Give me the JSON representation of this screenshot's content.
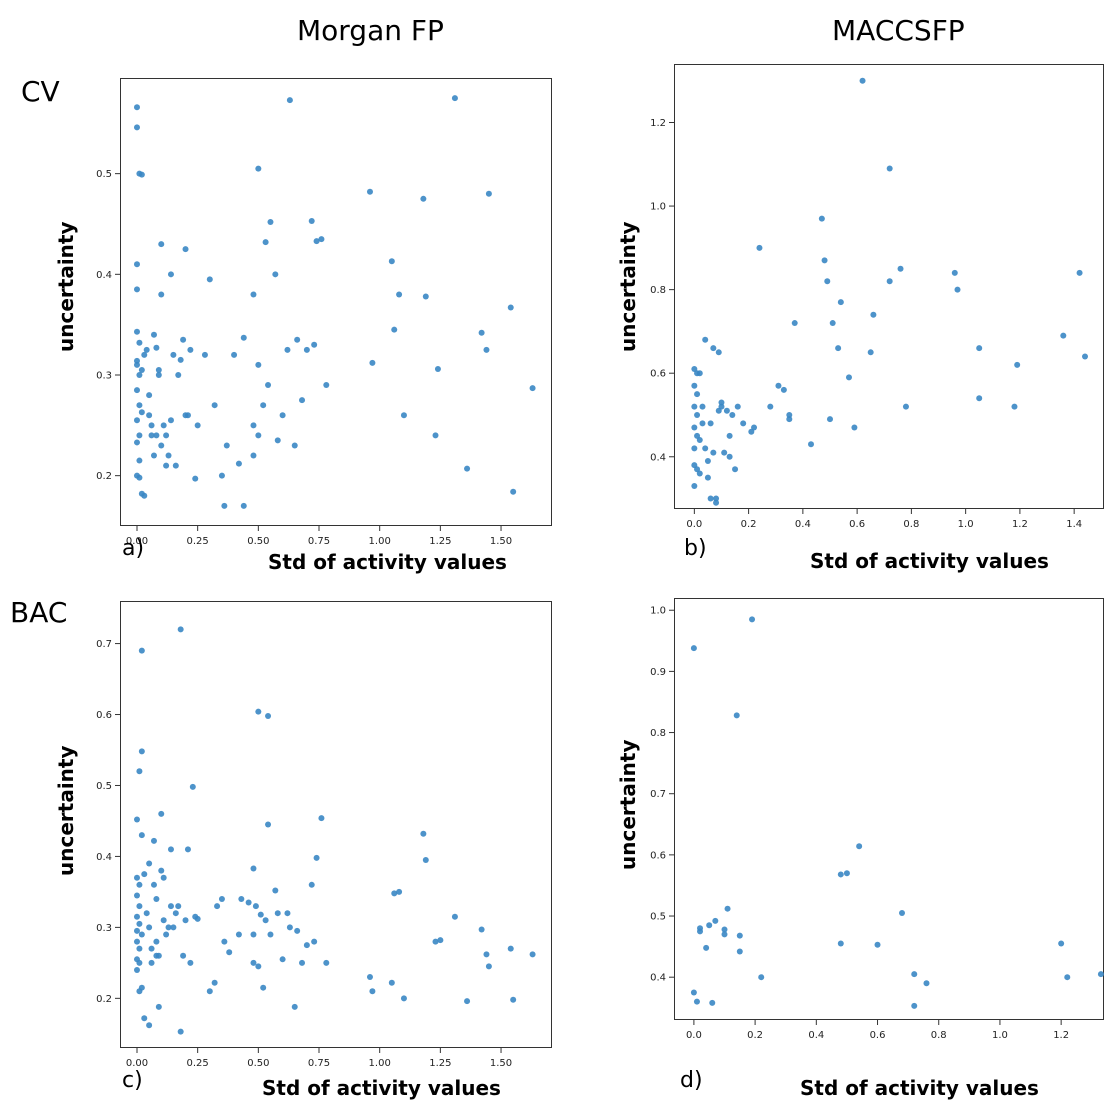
{
  "column_titles": [
    "Morgan FP",
    "MACCSFP"
  ],
  "row_labels": [
    "CV",
    "BAC"
  ],
  "point_color": "#3a87c4",
  "chart_data": [
    {
      "id": "a",
      "panel_letter": "a)",
      "type": "scatter",
      "xlabel": "Std of activity values",
      "ylabel": "uncertainty",
      "xlim": [
        -0.07,
        1.71
      ],
      "ylim": [
        0.15,
        0.595
      ],
      "xticks": [
        0.0,
        0.25,
        0.5,
        0.75,
        1.0,
        1.25,
        1.5
      ],
      "xtick_labels": [
        "0.00",
        "0.25",
        "0.50",
        "0.75",
        "1.00",
        "1.25",
        "1.50"
      ],
      "yticks": [
        0.2,
        0.3,
        0.4,
        0.5
      ],
      "ytick_labels": [
        "0.2",
        "0.3",
        "0.4",
        "0.5"
      ],
      "points": [
        [
          0.0,
          0.566
        ],
        [
          0.0,
          0.546
        ],
        [
          0.01,
          0.5
        ],
        [
          0.02,
          0.499
        ],
        [
          0.0,
          0.41
        ],
        [
          0.0,
          0.385
        ],
        [
          0.0,
          0.343
        ],
        [
          0.01,
          0.332
        ],
        [
          0.0,
          0.314
        ],
        [
          0.0,
          0.31
        ],
        [
          0.01,
          0.3
        ],
        [
          0.0,
          0.285
        ],
        [
          0.01,
          0.27
        ],
        [
          0.02,
          0.263
        ],
        [
          0.0,
          0.255
        ],
        [
          0.01,
          0.24
        ],
        [
          0.0,
          0.233
        ],
        [
          0.01,
          0.215
        ],
        [
          0.0,
          0.2
        ],
        [
          0.02,
          0.182
        ],
        [
          0.03,
          0.18
        ],
        [
          0.01,
          0.198
        ],
        [
          0.02,
          0.305
        ],
        [
          0.03,
          0.32
        ],
        [
          0.04,
          0.325
        ],
        [
          0.05,
          0.26
        ],
        [
          0.05,
          0.28
        ],
        [
          0.06,
          0.25
        ],
        [
          0.06,
          0.24
        ],
        [
          0.07,
          0.22
        ],
        [
          0.07,
          0.34
        ],
        [
          0.08,
          0.24
        ],
        [
          0.08,
          0.327
        ],
        [
          0.09,
          0.305
        ],
        [
          0.09,
          0.3
        ],
        [
          0.1,
          0.38
        ],
        [
          0.1,
          0.43
        ],
        [
          0.1,
          0.23
        ],
        [
          0.11,
          0.25
        ],
        [
          0.12,
          0.24
        ],
        [
          0.12,
          0.21
        ],
        [
          0.13,
          0.22
        ],
        [
          0.14,
          0.255
        ],
        [
          0.14,
          0.4
        ],
        [
          0.15,
          0.32
        ],
        [
          0.16,
          0.21
        ],
        [
          0.17,
          0.3
        ],
        [
          0.18,
          0.315
        ],
        [
          0.19,
          0.335
        ],
        [
          0.2,
          0.425
        ],
        [
          0.2,
          0.26
        ],
        [
          0.21,
          0.26
        ],
        [
          0.22,
          0.325
        ],
        [
          0.24,
          0.197
        ],
        [
          0.25,
          0.25
        ],
        [
          0.28,
          0.32
        ],
        [
          0.3,
          0.395
        ],
        [
          0.32,
          0.27
        ],
        [
          0.35,
          0.2
        ],
        [
          0.36,
          0.17
        ],
        [
          0.37,
          0.23
        ],
        [
          0.4,
          0.32
        ],
        [
          0.42,
          0.212
        ],
        [
          0.44,
          0.337
        ],
        [
          0.44,
          0.17
        ],
        [
          0.48,
          0.38
        ],
        [
          0.48,
          0.25
        ],
        [
          0.48,
          0.22
        ],
        [
          0.5,
          0.505
        ],
        [
          0.5,
          0.24
        ],
        [
          0.5,
          0.31
        ],
        [
          0.52,
          0.27
        ],
        [
          0.53,
          0.432
        ],
        [
          0.54,
          0.29
        ],
        [
          0.55,
          0.452
        ],
        [
          0.57,
          0.4
        ],
        [
          0.58,
          0.235
        ],
        [
          0.6,
          0.26
        ],
        [
          0.62,
          0.325
        ],
        [
          0.63,
          0.573
        ],
        [
          0.65,
          0.23
        ],
        [
          0.66,
          0.335
        ],
        [
          0.68,
          0.275
        ],
        [
          0.7,
          0.325
        ],
        [
          0.72,
          0.453
        ],
        [
          0.73,
          0.33
        ],
        [
          0.74,
          0.433
        ],
        [
          0.76,
          0.435
        ],
        [
          0.78,
          0.29
        ],
        [
          0.96,
          0.482
        ],
        [
          0.97,
          0.312
        ],
        [
          1.05,
          0.413
        ],
        [
          1.06,
          0.345
        ],
        [
          1.08,
          0.38
        ],
        [
          1.1,
          0.26
        ],
        [
          1.18,
          0.475
        ],
        [
          1.19,
          0.378
        ],
        [
          1.23,
          0.24
        ],
        [
          1.24,
          0.306
        ],
        [
          1.31,
          0.575
        ],
        [
          1.36,
          0.207
        ],
        [
          1.42,
          0.342
        ],
        [
          1.44,
          0.325
        ],
        [
          1.45,
          0.48
        ],
        [
          1.54,
          0.367
        ],
        [
          1.55,
          0.184
        ],
        [
          1.63,
          0.287
        ]
      ]
    },
    {
      "id": "b",
      "panel_letter": "b)",
      "type": "scatter",
      "xlabel": "Std of activity values",
      "ylabel": "uncertainty",
      "xlim": [
        -0.075,
        1.51
      ],
      "ylim": [
        0.275,
        1.34
      ],
      "xticks": [
        0.0,
        0.2,
        0.4,
        0.6,
        0.8,
        1.0,
        1.2,
        1.4
      ],
      "xtick_labels": [
        "0.0",
        "0.2",
        "0.4",
        "0.6",
        "0.8",
        "1.0",
        "1.2",
        "1.4"
      ],
      "yticks": [
        0.4,
        0.6,
        0.8,
        1.0,
        1.2
      ],
      "ytick_labels": [
        "0.4",
        "0.6",
        "0.8",
        "1.0",
        "1.2"
      ],
      "points": [
        [
          0.0,
          0.61
        ],
        [
          0.01,
          0.6
        ],
        [
          0.0,
          0.57
        ],
        [
          0.01,
          0.55
        ],
        [
          0.0,
          0.52
        ],
        [
          0.01,
          0.5
        ],
        [
          0.0,
          0.47
        ],
        [
          0.01,
          0.45
        ],
        [
          0.0,
          0.42
        ],
        [
          0.0,
          0.38
        ],
        [
          0.01,
          0.37
        ],
        [
          0.0,
          0.33
        ],
        [
          0.02,
          0.36
        ],
        [
          0.02,
          0.44
        ],
        [
          0.02,
          0.6
        ],
        [
          0.03,
          0.48
        ],
        [
          0.03,
          0.52
        ],
        [
          0.04,
          0.42
        ],
        [
          0.04,
          0.68
        ],
        [
          0.05,
          0.39
        ],
        [
          0.05,
          0.35
        ],
        [
          0.06,
          0.3
        ],
        [
          0.06,
          0.48
        ],
        [
          0.07,
          0.41
        ],
        [
          0.07,
          0.66
        ],
        [
          0.08,
          0.3
        ],
        [
          0.08,
          0.29
        ],
        [
          0.09,
          0.65
        ],
        [
          0.09,
          0.51
        ],
        [
          0.1,
          0.52
        ],
        [
          0.1,
          0.53
        ],
        [
          0.11,
          0.41
        ],
        [
          0.12,
          0.51
        ],
        [
          0.13,
          0.45
        ],
        [
          0.13,
          0.4
        ],
        [
          0.14,
          0.5
        ],
        [
          0.15,
          0.37
        ],
        [
          0.16,
          0.52
        ],
        [
          0.18,
          0.48
        ],
        [
          0.21,
          0.46
        ],
        [
          0.22,
          0.47
        ],
        [
          0.24,
          0.9
        ],
        [
          0.28,
          0.52
        ],
        [
          0.31,
          0.57
        ],
        [
          0.33,
          0.56
        ],
        [
          0.35,
          0.49
        ],
        [
          0.35,
          0.5
        ],
        [
          0.37,
          0.72
        ],
        [
          0.43,
          0.43
        ],
        [
          0.47,
          0.97
        ],
        [
          0.48,
          0.87
        ],
        [
          0.49,
          0.82
        ],
        [
          0.5,
          0.49
        ],
        [
          0.51,
          0.72
        ],
        [
          0.53,
          0.66
        ],
        [
          0.54,
          0.77
        ],
        [
          0.57,
          0.59
        ],
        [
          0.59,
          0.47
        ],
        [
          0.62,
          1.3
        ],
        [
          0.65,
          0.65
        ],
        [
          0.66,
          0.74
        ],
        [
          0.72,
          0.82
        ],
        [
          0.72,
          1.09
        ],
        [
          0.76,
          0.85
        ],
        [
          0.78,
          0.52
        ],
        [
          0.96,
          0.84
        ],
        [
          0.97,
          0.8
        ],
        [
          1.05,
          0.66
        ],
        [
          1.05,
          0.54
        ],
        [
          1.18,
          0.52
        ],
        [
          1.19,
          0.62
        ],
        [
          1.36,
          0.69
        ],
        [
          1.42,
          0.84
        ],
        [
          1.44,
          0.64
        ]
      ]
    },
    {
      "id": "c",
      "panel_letter": "c)",
      "type": "scatter",
      "xlabel": "Std of activity values",
      "ylabel": "uncertainty",
      "xlim": [
        -0.07,
        1.71
      ],
      "ylim": [
        0.13,
        0.76
      ],
      "xticks": [
        0.0,
        0.25,
        0.5,
        0.75,
        1.0,
        1.25,
        1.5
      ],
      "xtick_labels": [
        "0.00",
        "0.25",
        "0.50",
        "0.75",
        "1.00",
        "1.25",
        "1.50"
      ],
      "yticks": [
        0.2,
        0.3,
        0.4,
        0.5,
        0.6,
        0.7
      ],
      "ytick_labels": [
        "0.2",
        "0.3",
        "0.4",
        "0.5",
        "0.6",
        "0.7"
      ],
      "points": [
        [
          0.02,
          0.69
        ],
        [
          0.02,
          0.548
        ],
        [
          0.01,
          0.52
        ],
        [
          0.0,
          0.452
        ],
        [
          0.02,
          0.43
        ],
        [
          0.0,
          0.37
        ],
        [
          0.01,
          0.36
        ],
        [
          0.0,
          0.345
        ],
        [
          0.01,
          0.33
        ],
        [
          0.0,
          0.315
        ],
        [
          0.01,
          0.305
        ],
        [
          0.0,
          0.295
        ],
        [
          0.02,
          0.29
        ],
        [
          0.0,
          0.28
        ],
        [
          0.01,
          0.27
        ],
        [
          0.0,
          0.255
        ],
        [
          0.01,
          0.25
        ],
        [
          0.0,
          0.24
        ],
        [
          0.02,
          0.215
        ],
        [
          0.01,
          0.21
        ],
        [
          0.03,
          0.172
        ],
        [
          0.05,
          0.162
        ],
        [
          0.03,
          0.375
        ],
        [
          0.04,
          0.32
        ],
        [
          0.05,
          0.39
        ],
        [
          0.05,
          0.3
        ],
        [
          0.06,
          0.27
        ],
        [
          0.06,
          0.25
        ],
        [
          0.07,
          0.422
        ],
        [
          0.07,
          0.36
        ],
        [
          0.08,
          0.34
        ],
        [
          0.08,
          0.28
        ],
        [
          0.08,
          0.26
        ],
        [
          0.09,
          0.26
        ],
        [
          0.09,
          0.188
        ],
        [
          0.1,
          0.46
        ],
        [
          0.1,
          0.38
        ],
        [
          0.11,
          0.37
        ],
        [
          0.11,
          0.31
        ],
        [
          0.12,
          0.29
        ],
        [
          0.13,
          0.3
        ],
        [
          0.14,
          0.41
        ],
        [
          0.14,
          0.33
        ],
        [
          0.15,
          0.3
        ],
        [
          0.16,
          0.32
        ],
        [
          0.17,
          0.33
        ],
        [
          0.18,
          0.72
        ],
        [
          0.18,
          0.153
        ],
        [
          0.19,
          0.26
        ],
        [
          0.2,
          0.31
        ],
        [
          0.21,
          0.41
        ],
        [
          0.22,
          0.25
        ],
        [
          0.23,
          0.498
        ],
        [
          0.24,
          0.315
        ],
        [
          0.25,
          0.312
        ],
        [
          0.3,
          0.21
        ],
        [
          0.32,
          0.222
        ],
        [
          0.33,
          0.33
        ],
        [
          0.35,
          0.34
        ],
        [
          0.36,
          0.28
        ],
        [
          0.38,
          0.265
        ],
        [
          0.42,
          0.29
        ],
        [
          0.43,
          0.34
        ],
        [
          0.46,
          0.335
        ],
        [
          0.48,
          0.383
        ],
        [
          0.48,
          0.29
        ],
        [
          0.48,
          0.25
        ],
        [
          0.49,
          0.33
        ],
        [
          0.5,
          0.604
        ],
        [
          0.5,
          0.245
        ],
        [
          0.51,
          0.318
        ],
        [
          0.52,
          0.215
        ],
        [
          0.53,
          0.31
        ],
        [
          0.54,
          0.598
        ],
        [
          0.54,
          0.445
        ],
        [
          0.55,
          0.29
        ],
        [
          0.57,
          0.352
        ],
        [
          0.58,
          0.32
        ],
        [
          0.6,
          0.255
        ],
        [
          0.62,
          0.32
        ],
        [
          0.63,
          0.3
        ],
        [
          0.65,
          0.188
        ],
        [
          0.66,
          0.295
        ],
        [
          0.68,
          0.25
        ],
        [
          0.7,
          0.275
        ],
        [
          0.72,
          0.36
        ],
        [
          0.73,
          0.28
        ],
        [
          0.74,
          0.398
        ],
        [
          0.76,
          0.454
        ],
        [
          0.78,
          0.25
        ],
        [
          0.96,
          0.23
        ],
        [
          0.97,
          0.21
        ],
        [
          1.05,
          0.222
        ],
        [
          1.06,
          0.348
        ],
        [
          1.08,
          0.35
        ],
        [
          1.1,
          0.2
        ],
        [
          1.18,
          0.432
        ],
        [
          1.19,
          0.395
        ],
        [
          1.23,
          0.28
        ],
        [
          1.25,
          0.282
        ],
        [
          1.31,
          0.315
        ],
        [
          1.36,
          0.196
        ],
        [
          1.42,
          0.297
        ],
        [
          1.44,
          0.262
        ],
        [
          1.45,
          0.245
        ],
        [
          1.54,
          0.27
        ],
        [
          1.55,
          0.198
        ],
        [
          1.63,
          0.262
        ]
      ]
    },
    {
      "id": "d",
      "panel_letter": "d)",
      "type": "scatter",
      "xlabel": "Std of activity values",
      "ylabel": "uncertainty",
      "xlim": [
        -0.065,
        1.34
      ],
      "ylim": [
        0.33,
        1.02
      ],
      "xticks": [
        0.0,
        0.2,
        0.4,
        0.6,
        0.8,
        1.0,
        1.2
      ],
      "xtick_labels": [
        "0.0",
        "0.2",
        "0.4",
        "0.6",
        "0.8",
        "1.0",
        "1.2"
      ],
      "yticks": [
        0.4,
        0.5,
        0.6,
        0.7,
        0.8,
        0.9,
        1.0
      ],
      "ytick_labels": [
        "0.4",
        "0.5",
        "0.6",
        "0.7",
        "0.8",
        "0.9",
        "1.0"
      ],
      "points": [
        [
          0.0,
          0.938
        ],
        [
          0.0,
          0.375
        ],
        [
          0.01,
          0.36
        ],
        [
          0.02,
          0.48
        ],
        [
          0.02,
          0.475
        ],
        [
          0.04,
          0.448
        ],
        [
          0.05,
          0.485
        ],
        [
          0.06,
          0.358
        ],
        [
          0.07,
          0.492
        ],
        [
          0.1,
          0.478
        ],
        [
          0.1,
          0.47
        ],
        [
          0.11,
          0.512
        ],
        [
          0.14,
          0.828
        ],
        [
          0.15,
          0.468
        ],
        [
          0.15,
          0.442
        ],
        [
          0.19,
          0.985
        ],
        [
          0.22,
          0.4
        ],
        [
          0.48,
          0.568
        ],
        [
          0.48,
          0.455
        ],
        [
          0.5,
          0.57
        ],
        [
          0.54,
          0.614
        ],
        [
          0.6,
          0.453
        ],
        [
          0.68,
          0.505
        ],
        [
          0.72,
          0.405
        ],
        [
          0.72,
          0.353
        ],
        [
          0.76,
          0.39
        ],
        [
          1.2,
          0.455
        ],
        [
          1.22,
          0.4
        ],
        [
          1.33,
          0.405
        ]
      ]
    }
  ]
}
